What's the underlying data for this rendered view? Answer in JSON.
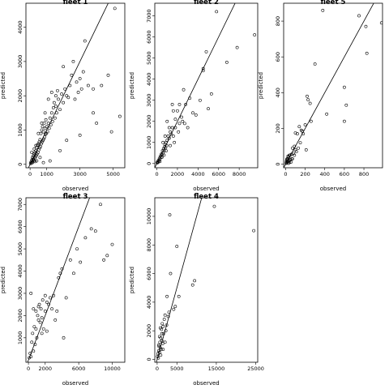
{
  "chart_data": [
    {
      "type": "scatter",
      "title": "fleet 1",
      "xlabel": "observed",
      "ylabel": "predicted",
      "xlim": [
        -250,
        5700
      ],
      "ylim": [
        -100,
        4700
      ],
      "xticks": [
        0,
        1000,
        3000,
        5000
      ],
      "yticks": [
        0,
        1000,
        2000,
        3000,
        4000
      ],
      "reference_line": {
        "slope": 1,
        "intercept": 0
      },
      "points": [
        [
          30,
          20
        ],
        [
          50,
          60
        ],
        [
          80,
          40
        ],
        [
          100,
          120
        ],
        [
          120,
          80
        ],
        [
          150,
          200
        ],
        [
          170,
          150
        ],
        [
          200,
          250
        ],
        [
          220,
          100
        ],
        [
          250,
          300
        ],
        [
          280,
          180
        ],
        [
          300,
          350
        ],
        [
          320,
          220
        ],
        [
          350,
          400
        ],
        [
          380,
          260
        ],
        [
          400,
          500
        ],
        [
          420,
          300
        ],
        [
          450,
          560
        ],
        [
          480,
          350
        ],
        [
          500,
          600
        ],
        [
          520,
          420
        ],
        [
          550,
          650
        ],
        [
          580,
          480
        ],
        [
          600,
          720
        ],
        [
          620,
          520
        ],
        [
          650,
          900
        ],
        [
          680,
          600
        ],
        [
          700,
          1000
        ],
        [
          720,
          650
        ],
        [
          750,
          1100
        ],
        [
          780,
          700
        ],
        [
          800,
          950
        ],
        [
          820,
          740
        ],
        [
          850,
          1200
        ],
        [
          880,
          800
        ],
        [
          900,
          1050
        ],
        [
          930,
          880
        ],
        [
          950,
          1300
        ],
        [
          980,
          900
        ],
        [
          1000,
          1100
        ],
        [
          1050,
          950
        ],
        [
          1100,
          1200
        ],
        [
          1150,
          1050
        ],
        [
          1200,
          1350
        ],
        [
          1250,
          1150
        ],
        [
          1300,
          1500
        ],
        [
          1350,
          1250
        ],
        [
          1400,
          1650
        ],
        [
          1450,
          1800
        ],
        [
          1500,
          1350
        ],
        [
          1550,
          1700
        ],
        [
          1600,
          1500
        ],
        [
          1700,
          1900
        ],
        [
          1800,
          1600
        ],
        [
          1900,
          2050
        ],
        [
          2000,
          1800
        ],
        [
          2100,
          2200
        ],
        [
          2200,
          2000
        ],
        [
          2300,
          1950
        ],
        [
          2400,
          2300
        ],
        [
          2500,
          2600
        ],
        [
          2600,
          3000
        ],
        [
          2700,
          1900
        ],
        [
          2800,
          2400
        ],
        [
          2900,
          2100
        ],
        [
          3000,
          2500
        ],
        [
          3100,
          2200
        ],
        [
          3200,
          2700
        ],
        [
          3300,
          3600
        ],
        [
          3500,
          2300
        ],
        [
          3800,
          1500
        ],
        [
          4000,
          1200
        ],
        [
          4300,
          2300
        ],
        [
          4700,
          2600
        ],
        [
          5100,
          4550
        ],
        [
          5400,
          1400
        ],
        [
          4900,
          950
        ],
        [
          3000,
          850
        ],
        [
          3800,
          2200
        ],
        [
          2200,
          700
        ],
        [
          1800,
          400
        ],
        [
          1200,
          100
        ],
        [
          800,
          50
        ],
        [
          600,
          200
        ],
        [
          400,
          100
        ],
        [
          300,
          80
        ],
        [
          200,
          150
        ],
        [
          150,
          50
        ],
        [
          100,
          350
        ],
        [
          250,
          450
        ],
        [
          350,
          550
        ],
        [
          500,
          900
        ],
        [
          700,
          1200
        ],
        [
          900,
          1500
        ],
        [
          1100,
          1900
        ],
        [
          1300,
          2100
        ],
        [
          1550,
          2000
        ],
        [
          2000,
          2850
        ],
        [
          1650,
          2150
        ]
      ]
    },
    {
      "type": "scatter",
      "title": "fleet 2",
      "xlabel": "observed",
      "ylabel": "predicted",
      "xlim": [
        -200,
        9800
      ],
      "ylim": [
        -200,
        7600
      ],
      "xticks": [
        0,
        2000,
        4000,
        6000,
        8000
      ],
      "yticks": [
        0,
        1000,
        2000,
        3000,
        4000,
        5000,
        6000,
        7000
      ],
      "reference_line": {
        "slope": 1,
        "intercept": 0
      },
      "points": [
        [
          30,
          30
        ],
        [
          60,
          80
        ],
        [
          100,
          50
        ],
        [
          150,
          150
        ],
        [
          200,
          120
        ],
        [
          250,
          250
        ],
        [
          300,
          200
        ],
        [
          350,
          350
        ],
        [
          400,
          300
        ],
        [
          450,
          450
        ],
        [
          500,
          420
        ],
        [
          550,
          600
        ],
        [
          600,
          500
        ],
        [
          650,
          700
        ],
        [
          700,
          600
        ],
        [
          750,
          800
        ],
        [
          800,
          900
        ],
        [
          850,
          750
        ],
        [
          900,
          1000
        ],
        [
          950,
          850
        ],
        [
          1000,
          1100
        ],
        [
          1100,
          1300
        ],
        [
          1200,
          1200
        ],
        [
          1300,
          1500
        ],
        [
          1400,
          1400
        ],
        [
          1500,
          1700
        ],
        [
          1600,
          1300
        ],
        [
          1700,
          1000
        ],
        [
          1800,
          2100
        ],
        [
          2000,
          2500
        ],
        [
          2100,
          1500
        ],
        [
          2200,
          2800
        ],
        [
          2400,
          2200
        ],
        [
          2600,
          3500
        ],
        [
          2800,
          2800
        ],
        [
          3000,
          1700
        ],
        [
          3200,
          3100
        ],
        [
          3500,
          2400
        ],
        [
          3800,
          2300
        ],
        [
          4200,
          3000
        ],
        [
          4500,
          4400
        ],
        [
          4800,
          5300
        ],
        [
          5000,
          2600
        ],
        [
          5300,
          3300
        ],
        [
          5800,
          7200
        ],
        [
          6800,
          4800
        ],
        [
          7800,
          5500
        ],
        [
          9500,
          6100
        ],
        [
          1500,
          2800
        ],
        [
          1200,
          1700
        ],
        [
          900,
          600
        ],
        [
          700,
          400
        ],
        [
          500,
          300
        ],
        [
          300,
          100
        ],
        [
          1000,
          2000
        ],
        [
          2500,
          2000
        ],
        [
          1800,
          1700
        ],
        [
          1300,
          850
        ],
        [
          2200,
          1900
        ],
        [
          4500,
          4500
        ],
        [
          2700,
          1900
        ],
        [
          1600,
          2500
        ],
        [
          800,
          1300
        ],
        [
          600,
          1000
        ]
      ]
    },
    {
      "type": "scatter",
      "title": "fleet 5",
      "xlabel": "observed",
      "ylabel": "predicted",
      "xlim": [
        -20,
        990
      ],
      "ylim": [
        -20,
        900
      ],
      "xticks": [
        0,
        200,
        400,
        600,
        800
      ],
      "yticks": [
        0,
        200,
        400,
        600,
        800
      ],
      "reference_line": {
        "slope": 1,
        "intercept": 0
      },
      "points": [
        [
          5,
          5
        ],
        [
          10,
          20
        ],
        [
          15,
          8
        ],
        [
          20,
          30
        ],
        [
          25,
          15
        ],
        [
          30,
          40
        ],
        [
          35,
          20
        ],
        [
          40,
          10
        ],
        [
          45,
          50
        ],
        [
          50,
          25
        ],
        [
          55,
          12
        ],
        [
          60,
          55
        ],
        [
          70,
          30
        ],
        [
          80,
          60
        ],
        [
          90,
          100
        ],
        [
          100,
          80
        ],
        [
          110,
          70
        ],
        [
          120,
          170
        ],
        [
          130,
          90
        ],
        [
          150,
          120
        ],
        [
          160,
          190
        ],
        [
          180,
          170
        ],
        [
          200,
          220
        ],
        [
          210,
          80
        ],
        [
          220,
          380
        ],
        [
          230,
          360
        ],
        [
          250,
          340
        ],
        [
          260,
          240
        ],
        [
          300,
          560
        ],
        [
          380,
          860
        ],
        [
          420,
          280
        ],
        [
          600,
          240
        ],
        [
          620,
          330
        ],
        [
          600,
          430
        ],
        [
          750,
          830
        ],
        [
          830,
          620
        ],
        [
          820,
          770
        ],
        [
          980,
          790
        ],
        [
          140,
          210
        ],
        [
          100,
          175
        ],
        [
          60,
          30
        ],
        [
          40,
          50
        ],
        [
          20,
          15
        ],
        [
          15,
          30
        ],
        [
          8,
          12
        ],
        [
          12,
          25
        ],
        [
          30,
          5
        ],
        [
          25,
          45
        ],
        [
          90,
          50
        ],
        [
          70,
          90
        ],
        [
          170,
          185
        ]
      ]
    },
    {
      "type": "scatter",
      "title": "fleet 3",
      "xlabel": "observed",
      "ylabel": "predicted",
      "xlim": [
        -300,
        11500
      ],
      "ylim": [
        -100,
        7300
      ],
      "xticks": [
        0,
        2000,
        6000,
        10000
      ],
      "yticks": [
        1000,
        2000,
        3000,
        4000,
        5000,
        6000,
        7000
      ],
      "reference_line": {
        "slope": 1,
        "intercept": 0
      },
      "points": [
        [
          100,
          100
        ],
        [
          200,
          300
        ],
        [
          300,
          150
        ],
        [
          400,
          800
        ],
        [
          500,
          1200
        ],
        [
          600,
          400
        ],
        [
          700,
          1500
        ],
        [
          800,
          700
        ],
        [
          900,
          2200
        ],
        [
          1000,
          1000
        ],
        [
          1100,
          2000
        ],
        [
          1200,
          1800
        ],
        [
          1300,
          2500
        ],
        [
          1400,
          1700
        ],
        [
          1500,
          2300
        ],
        [
          1600,
          1900
        ],
        [
          1700,
          2700
        ],
        [
          1800,
          1400
        ],
        [
          2000,
          2900
        ],
        [
          2200,
          1300
        ],
        [
          2400,
          2500
        ],
        [
          2600,
          2800
        ],
        [
          2800,
          2300
        ],
        [
          3000,
          2900
        ],
        [
          3200,
          1800
        ],
        [
          3400,
          2200
        ],
        [
          3600,
          3700
        ],
        [
          3800,
          3900
        ],
        [
          4000,
          4100
        ],
        [
          4200,
          1000
        ],
        [
          4500,
          2800
        ],
        [
          5000,
          4500
        ],
        [
          5400,
          3900
        ],
        [
          5800,
          5000
        ],
        [
          6200,
          4400
        ],
        [
          6800,
          5500
        ],
        [
          7500,
          5900
        ],
        [
          8000,
          5800
        ],
        [
          8600,
          7000
        ],
        [
          9000,
          4500
        ],
        [
          9400,
          4700
        ],
        [
          10000,
          5200
        ],
        [
          300,
          3000
        ],
        [
          600,
          2300
        ],
        [
          900,
          1400
        ],
        [
          1200,
          2400
        ],
        [
          2000,
          2200
        ],
        [
          1600,
          1200
        ],
        [
          2200,
          2600
        ]
      ]
    },
    {
      "type": "scatter",
      "title": "fleet 4",
      "xlabel": "observed",
      "ylabel": "predicted",
      "xlim": [
        -600,
        25500
      ],
      "ylim": [
        -200,
        11300
      ],
      "xticks": [
        0,
        5000,
        15000,
        25000
      ],
      "yticks": [
        0,
        2000,
        4000,
        6000,
        8000,
        10000
      ],
      "reference_line": {
        "slope": 1,
        "intercept": 0
      },
      "points": [
        [
          100,
          200
        ],
        [
          200,
          400
        ],
        [
          300,
          100
        ],
        [
          400,
          600
        ],
        [
          500,
          900
        ],
        [
          600,
          500
        ],
        [
          700,
          1200
        ],
        [
          800,
          800
        ],
        [
          900,
          1500
        ],
        [
          1000,
          700
        ],
        [
          1100,
          2100
        ],
        [
          1200,
          1300
        ],
        [
          1300,
          2500
        ],
        [
          1400,
          1100
        ],
        [
          1500,
          2300
        ],
        [
          1600,
          1800
        ],
        [
          1800,
          2800
        ],
        [
          2000,
          3100
        ],
        [
          2200,
          2000
        ],
        [
          2400,
          2400
        ],
        [
          2500,
          4400
        ],
        [
          2800,
          3000
        ],
        [
          3000,
          3300
        ],
        [
          3200,
          10100
        ],
        [
          3400,
          6000
        ],
        [
          4200,
          3500
        ],
        [
          4600,
          3700
        ],
        [
          5000,
          7900
        ],
        [
          5500,
          4400
        ],
        [
          9000,
          5200
        ],
        [
          9500,
          5500
        ],
        [
          14500,
          10700
        ],
        [
          24500,
          9000
        ],
        [
          400,
          1000
        ],
        [
          600,
          1600
        ],
        [
          900,
          300
        ],
        [
          1200,
          1800
        ],
        [
          1500,
          700
        ],
        [
          800,
          2200
        ],
        [
          2000,
          1200
        ]
      ]
    }
  ]
}
